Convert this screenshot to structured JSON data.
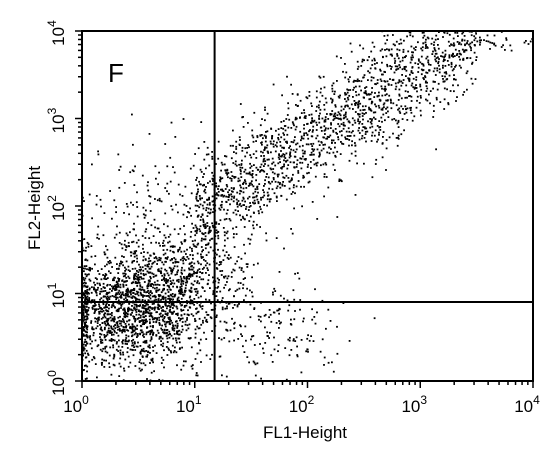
{
  "chart_data": {
    "type": "scatter",
    "title": "",
    "panel_label": "F",
    "xlabel": "FL1-Height",
    "ylabel": "FL2-Height",
    "x_scale": "log",
    "y_scale": "log",
    "xlim": [
      1,
      10000
    ],
    "ylim": [
      1,
      10000
    ],
    "x_ticks": [
      {
        "base": "10",
        "exp": "0"
      },
      {
        "base": "10",
        "exp": "1"
      },
      {
        "base": "10",
        "exp": "2"
      },
      {
        "base": "10",
        "exp": "3"
      },
      {
        "base": "10",
        "exp": "4"
      }
    ],
    "y_ticks": [
      {
        "base": "10",
        "exp": "0"
      },
      {
        "base": "10",
        "exp": "1"
      },
      {
        "base": "10",
        "exp": "2"
      },
      {
        "base": "10",
        "exp": "3"
      },
      {
        "base": "10",
        "exp": "4"
      }
    ],
    "quadrant_gates": {
      "x": 15,
      "y": 8
    },
    "grid": false,
    "legend": "none",
    "point_color": "#000000",
    "clusters": [
      {
        "description": "double-negative population (low FL1, low FL2)",
        "x_log_center": 0.45,
        "y_log_center": 0.8,
        "x_log_sd": 0.33,
        "y_log_sd": 0.32,
        "approx_points": 1500
      },
      {
        "description": "spread toward gate boundary",
        "x_log_center": 0.9,
        "y_log_center": 1.2,
        "x_log_sd": 0.3,
        "y_log_sd": 0.28,
        "approx_points": 450
      },
      {
        "description": "diagonal double-positive population",
        "x_log_range": [
          1.0,
          3.5
        ],
        "y_log_intercept": 1.05,
        "y_log_slope": 0.85,
        "y_log_sd": 0.32,
        "approx_points": 1800
      },
      {
        "description": "low FL2 tail (lower-right quadrant)",
        "x_log_center": 1.7,
        "y_log_center": 0.6,
        "x_log_sd": 0.35,
        "y_log_sd": 0.25,
        "approx_points": 160
      },
      {
        "description": "upper-left scatter",
        "x_log_center": 0.7,
        "y_log_center": 1.8,
        "x_log_sd": 0.35,
        "y_log_sd": 0.45,
        "approx_points": 220
      },
      {
        "description": "high double-positive edge",
        "x_log_range": [
          3.5,
          4.0
        ],
        "y_log_center": 3.87,
        "y_log_sd": 0.05,
        "approx_points": 30
      }
    ]
  }
}
